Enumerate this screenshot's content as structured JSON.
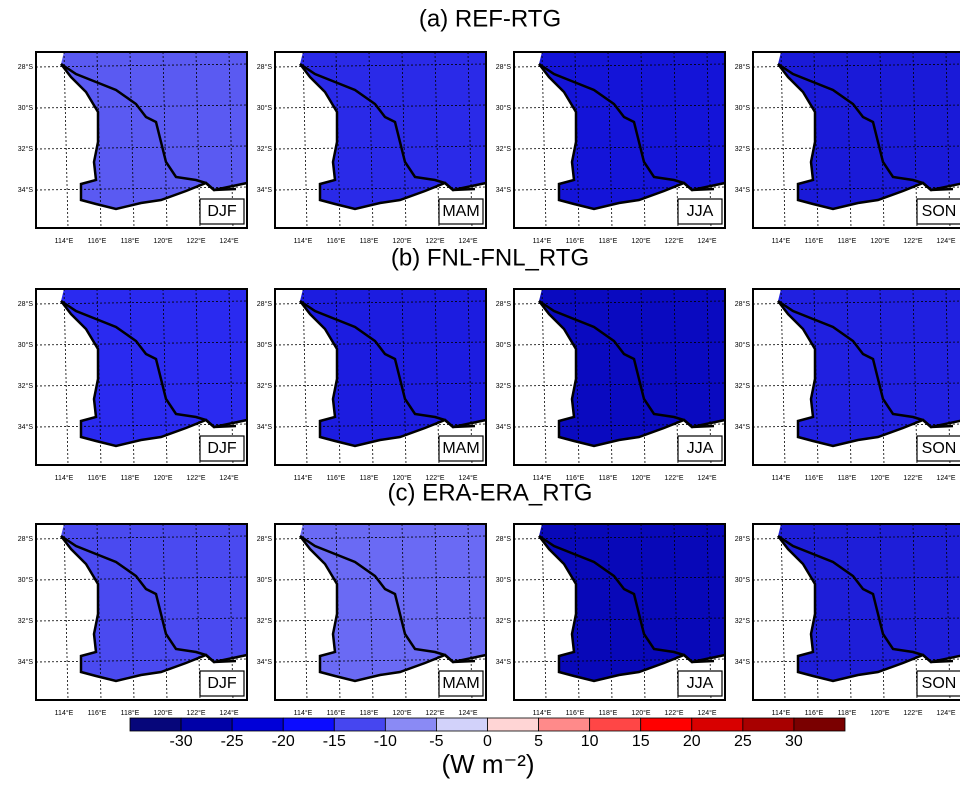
{
  "rows": [
    {
      "title": "(a) REF-RTG",
      "panels": [
        {
          "season": "DJF",
          "color": "#5a5af2"
        },
        {
          "season": "MAM",
          "color": "#2a2ae8"
        },
        {
          "season": "JJA",
          "color": "#1414d8"
        },
        {
          "season": "SON",
          "color": "#1a1ad8"
        }
      ]
    },
    {
      "title": "(b) FNL-FNL_RTG",
      "panels": [
        {
          "season": "DJF",
          "color": "#2a2af0"
        },
        {
          "season": "MAM",
          "color": "#1c1ce0"
        },
        {
          "season": "JJA",
          "color": "#0a0ac0"
        },
        {
          "season": "SON",
          "color": "#2020e0"
        }
      ]
    },
    {
      "title": "(c) ERA-ERA_RTG",
      "panels": [
        {
          "season": "DJF",
          "color": "#4a4af0"
        },
        {
          "season": "MAM",
          "color": "#6a6af4"
        },
        {
          "season": "JJA",
          "color": "#0808b8"
        },
        {
          "season": "SON",
          "color": "#1e1ed8"
        }
      ]
    }
  ],
  "lat_labels": [
    "28°S",
    "30°S",
    "32°S",
    "34°S"
  ],
  "lon_labels": [
    "114°E",
    "116°E",
    "118°E",
    "120°E",
    "122°E",
    "124°E"
  ],
  "colorbar": {
    "levels": [
      -30,
      -25,
      -20,
      -15,
      -10,
      -5,
      0,
      5,
      10,
      15,
      20,
      25,
      30
    ],
    "colors": [
      "#06067a",
      "#0000a8",
      "#0000d8",
      "#0c0cff",
      "#4646f0",
      "#8a8af5",
      "#d2d2fa",
      "#ffd5d5",
      "#ff8a8a",
      "#ff4646",
      "#ff0000",
      "#d80000",
      "#a80000",
      "#7a0000"
    ],
    "unit": "(W m⁻²)"
  }
}
